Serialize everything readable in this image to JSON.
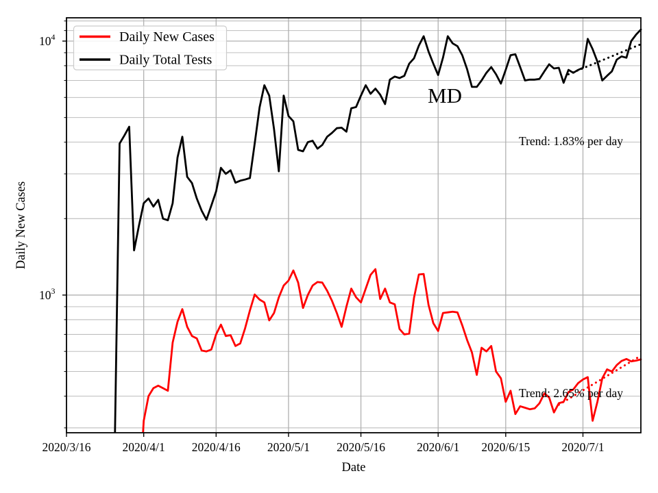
{
  "figure": {
    "background_color": "#ffffff",
    "grid_major_color": "#b0b0b0",
    "grid_minor_color": "#b4b4b4",
    "spine_color": "#000000"
  },
  "chart_data": {
    "type": "line",
    "title": "MD",
    "xlabel": "Date",
    "ylabel": "Daily New Cases",
    "y_scale": "log",
    "x_range": [
      "2020/3/16",
      "2020/7/13"
    ],
    "y_range": [
      287,
      12350
    ],
    "x_ticks": [
      "2020/3/16",
      "2020/4/1",
      "2020/4/16",
      "2020/5/1",
      "2020/5/16",
      "2020/6/1",
      "2020/6/15",
      "2020/7/1"
    ],
    "y_major_ticks": [
      {
        "value": 1000,
        "base": "10",
        "exp": "3"
      },
      {
        "value": 10000,
        "base": "10",
        "exp": "4"
      }
    ],
    "y_minor_ticks": [
      300,
      400,
      500,
      600,
      700,
      800,
      900,
      2000,
      3000,
      4000,
      5000,
      6000,
      7000,
      8000,
      9000,
      11000,
      12000
    ],
    "legend": {
      "position": "upper-left",
      "entries": [
        "Daily New Cases",
        "Daily Total Tests"
      ]
    },
    "dates": [
      "2020/3/26",
      "2020/3/27",
      "2020/3/28",
      "2020/3/29",
      "2020/3/30",
      "2020/3/31",
      "2020/4/1",
      "2020/4/2",
      "2020/4/3",
      "2020/4/4",
      "2020/4/5",
      "2020/4/6",
      "2020/4/7",
      "2020/4/8",
      "2020/4/9",
      "2020/4/10",
      "2020/4/11",
      "2020/4/12",
      "2020/4/13",
      "2020/4/14",
      "2020/4/15",
      "2020/4/16",
      "2020/4/17",
      "2020/4/18",
      "2020/4/19",
      "2020/4/20",
      "2020/4/21",
      "2020/4/22",
      "2020/4/23",
      "2020/4/24",
      "2020/4/25",
      "2020/4/26",
      "2020/4/27",
      "2020/4/28",
      "2020/4/29",
      "2020/4/30",
      "2020/5/1",
      "2020/5/2",
      "2020/5/3",
      "2020/5/4",
      "2020/5/5",
      "2020/5/6",
      "2020/5/7",
      "2020/5/8",
      "2020/5/9",
      "2020/5/10",
      "2020/5/11",
      "2020/5/12",
      "2020/5/13",
      "2020/5/14",
      "2020/5/15",
      "2020/5/16",
      "2020/5/17",
      "2020/5/18",
      "2020/5/19",
      "2020/5/20",
      "2020/5/21",
      "2020/5/22",
      "2020/5/23",
      "2020/5/24",
      "2020/5/25",
      "2020/5/26",
      "2020/5/27",
      "2020/5/28",
      "2020/5/29",
      "2020/5/30",
      "2020/5/31",
      "2020/6/1",
      "2020/6/2",
      "2020/6/3",
      "2020/6/4",
      "2020/6/5",
      "2020/6/6",
      "2020/6/7",
      "2020/6/8",
      "2020/6/9",
      "2020/6/10",
      "2020/6/11",
      "2020/6/12",
      "2020/6/13",
      "2020/6/14",
      "2020/6/15",
      "2020/6/16",
      "2020/6/17",
      "2020/6/18",
      "2020/6/19",
      "2020/6/20",
      "2020/6/21",
      "2020/6/22",
      "2020/6/23",
      "2020/6/24",
      "2020/6/25",
      "2020/6/26",
      "2020/6/27",
      "2020/6/28",
      "2020/6/29",
      "2020/6/30",
      "2020/7/1",
      "2020/7/2",
      "2020/7/3",
      "2020/7/4",
      "2020/7/5",
      "2020/7/6",
      "2020/7/7",
      "2020/7/8",
      "2020/7/9",
      "2020/7/10",
      "2020/7/11",
      "2020/7/12",
      "2020/7/13"
    ],
    "series": [
      {
        "name": "Daily New Cases",
        "color": "#ff0000",
        "values": [
          null,
          null,
          null,
          null,
          null,
          150,
          320,
          400,
          430,
          440,
          430,
          420,
          650,
          785,
          880,
          750,
          690,
          675,
          605,
          600,
          610,
          700,
          765,
          690,
          695,
          630,
          645,
          740,
          870,
          1005,
          960,
          935,
          795,
          850,
          980,
          1090,
          1140,
          1250,
          1120,
          890,
          1000,
          1090,
          1125,
          1120,
          1040,
          950,
          850,
          750,
          900,
          1060,
          980,
          935,
          1060,
          1200,
          1265,
          965,
          1060,
          935,
          920,
          735,
          700,
          705,
          975,
          1205,
          1210,
          915,
          775,
          722,
          850,
          855,
          860,
          855,
          760,
          665,
          595,
          485,
          620,
          600,
          630,
          500,
          470,
          380,
          420,
          340,
          365,
          360,
          355,
          358,
          375,
          410,
          395,
          345,
          375,
          380,
          415,
          425,
          450,
          465,
          475,
          320,
          380,
          470,
          510,
          500,
          530,
          550,
          560,
          548,
          552,
          558
        ]
      },
      {
        "name": "Daily Total Tests",
        "color": "#000000",
        "values": [
          250,
          3950,
          4250,
          4600,
          1500,
          1870,
          2300,
          2400,
          2230,
          2370,
          2000,
          1970,
          2300,
          3480,
          4200,
          2920,
          2760,
          2400,
          2150,
          1980,
          2250,
          2560,
          3170,
          3000,
          3100,
          2770,
          2820,
          2850,
          2890,
          3950,
          5480,
          6700,
          6100,
          4500,
          3070,
          6100,
          5070,
          4830,
          3730,
          3680,
          4000,
          4050,
          3770,
          3900,
          4200,
          4350,
          4540,
          4560,
          4400,
          5440,
          5500,
          6100,
          6700,
          6200,
          6500,
          6150,
          5650,
          7050,
          7250,
          7150,
          7300,
          8150,
          8550,
          9600,
          10450,
          9100,
          8150,
          7350,
          8600,
          10450,
          9800,
          9550,
          8800,
          7750,
          6600,
          6600,
          7000,
          7500,
          7900,
          7400,
          6800,
          7700,
          8800,
          8870,
          7900,
          7000,
          7050,
          7050,
          7100,
          7600,
          8100,
          7800,
          7850,
          6850,
          7700,
          7500,
          7700,
          7850,
          10200,
          9300,
          8300,
          7000,
          7300,
          7600,
          8450,
          8700,
          8600,
          10000,
          10600,
          11100
        ]
      }
    ],
    "trends": [
      {
        "label": "Trend: 1.83% per day",
        "series": "Daily Total Tests",
        "rate_percent_per_day": 1.83,
        "color": "#000000",
        "start_date": "2020/6/28",
        "start_value": 7400,
        "end_date": "2020/7/13",
        "end_value": 9720
      },
      {
        "label": "Trend: 2.65% per day",
        "series": "Daily New Cases",
        "rate_percent_per_day": 2.65,
        "color": "#ff0000",
        "start_date": "2020/6/26",
        "start_value": 370,
        "end_date": "2020/7/13",
        "end_value": 577
      }
    ]
  }
}
